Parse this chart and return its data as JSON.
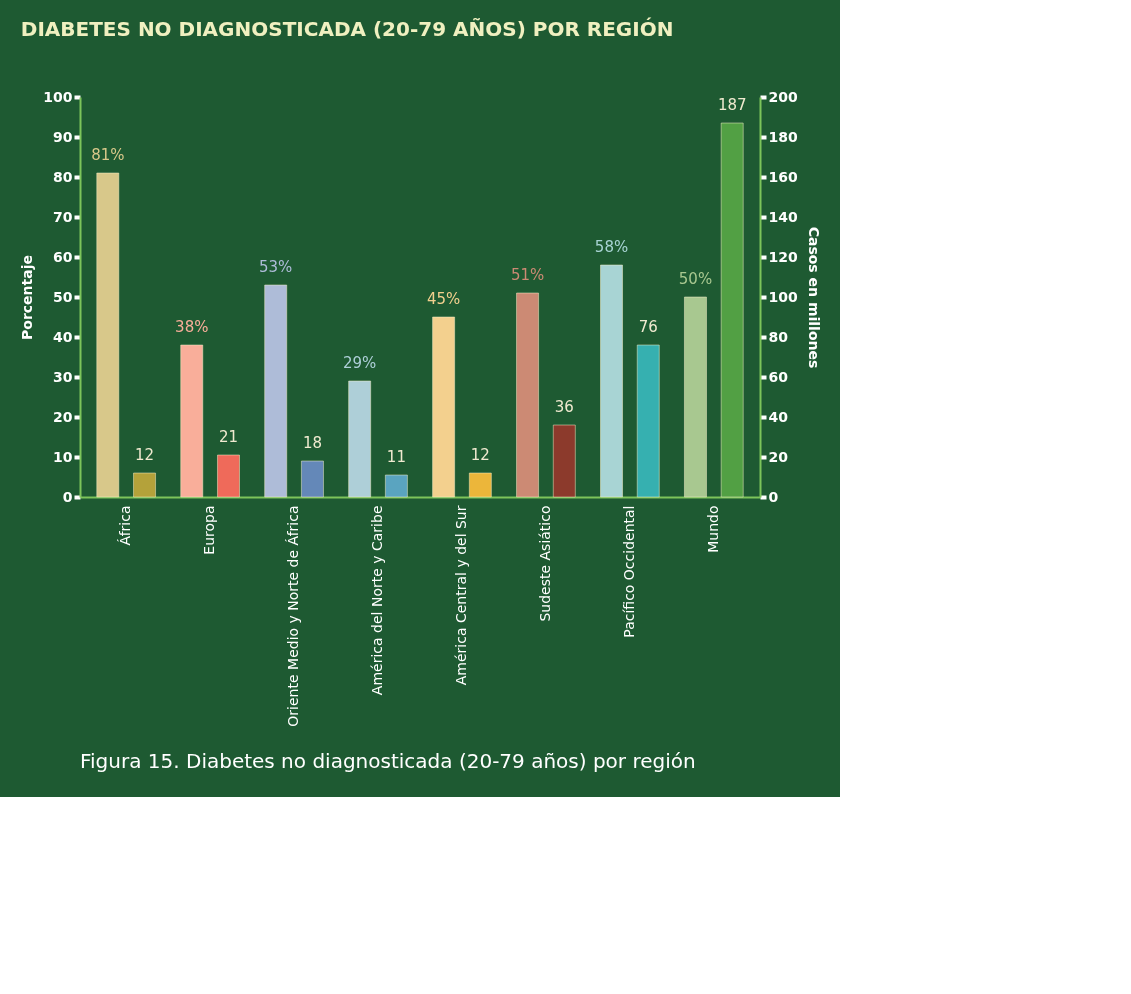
{
  "chart_data": {
    "type": "bar",
    "title": "DIABETES NO DIAGNOSTICADA (20-79 AÑOS) POR REGIÓN",
    "categories": [
      "África",
      "Europa",
      "Oriente Medio y Norte de África",
      "América del Norte y Caribe",
      "América Central y del Sur",
      "Sudeste Asiático",
      "Pacífico Occidental",
      "Mundo"
    ],
    "series": [
      {
        "axis": "y",
        "colors": [
          "#d8c88a",
          "#f9ae9a",
          "#aebcd8",
          "#aecfd8",
          "#f3d08e",
          "#cc8a74",
          "#a8d4d4",
          "#a8c890"
        ],
        "values": [
          81,
          38,
          53,
          29,
          45,
          51,
          58,
          50
        ],
        "value_labels": [
          "81%",
          "38%",
          "53%",
          "29%",
          "45%",
          "51%",
          "58%",
          "50%"
        ]
      },
      {
        "axis": "y2",
        "colors": [
          "#b4a23a",
          "#ef6a5a",
          "#6488b8",
          "#5aa4c0",
          "#ecb63a",
          "#8c3a2c",
          "#36b0b0",
          "#52a044"
        ],
        "values": [
          12,
          21,
          18,
          11,
          12,
          36,
          76,
          187
        ],
        "value_labels": [
          "12",
          "21",
          "18",
          "11",
          "12",
          "36",
          "76",
          "187"
        ]
      }
    ],
    "ylabel": "Porcentaje",
    "y2label": "Casos en millones",
    "ylim": [
      0,
      100
    ],
    "yticks": [
      0,
      10,
      20,
      30,
      40,
      50,
      60,
      70,
      80,
      90,
      100
    ],
    "y2lim": [
      0,
      200
    ],
    "y2ticks": [
      0,
      20,
      40,
      60,
      80,
      100,
      120,
      140,
      160,
      180,
      200
    ],
    "grid": false,
    "annotations": [
      "Figura 15. Diabetes no diagnosticada (20-79 años) por región"
    ]
  }
}
